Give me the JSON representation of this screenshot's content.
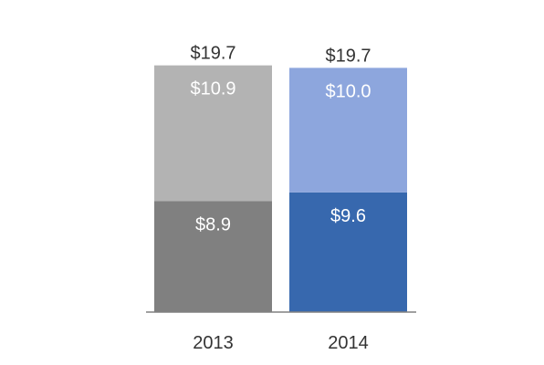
{
  "chart_data": {
    "type": "bar",
    "stacked": true,
    "categories": [
      "2013",
      "2014"
    ],
    "series": [
      {
        "values": [
          8.9,
          9.6
        ],
        "labels": [
          "$8.9",
          "$9.6"
        ],
        "colors": [
          "#808080",
          "#3768AE"
        ]
      },
      {
        "values": [
          10.9,
          10.0
        ],
        "labels": [
          "$10.9",
          "$10.0"
        ],
        "colors": [
          "#B3B3B3",
          "#8DA6DD"
        ]
      }
    ],
    "totals": [
      19.7,
      19.7
    ],
    "total_labels": [
      "$19.7",
      "$19.7"
    ],
    "title": "",
    "xlabel": "",
    "ylabel": "",
    "ylim": [
      0,
      19.7
    ],
    "grid": false,
    "legend": "none",
    "axis_color": "#808080"
  }
}
